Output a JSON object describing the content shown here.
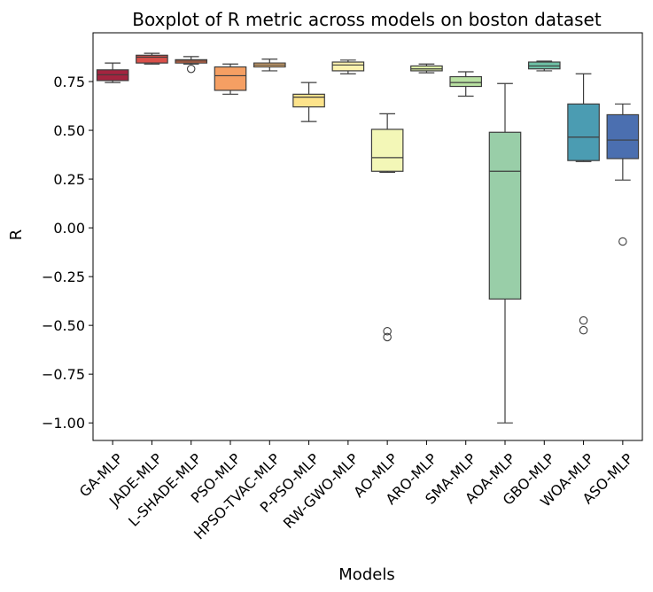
{
  "chart_data": {
    "type": "box",
    "title": "Boxplot of R metric across models on boston dataset",
    "xlabel": "Models",
    "ylabel": "R",
    "ylim": [
      -1.09,
      1.0
    ],
    "yticks": [
      -1.0,
      -0.75,
      -0.5,
      -0.25,
      0.0,
      0.25,
      0.5,
      0.75
    ],
    "ytick_labels": [
      "−1.00",
      "−0.75",
      "−0.50",
      "−0.25",
      "0.00",
      "0.25",
      "0.50",
      "0.75"
    ],
    "grid": false,
    "legend": "none",
    "categories": [
      "GA-MLP",
      "JADE-MLP",
      "L-SHADE-MLP",
      "PSO-MLP",
      "HPSO-TVAC-MLP",
      "P-PSO-MLP",
      "RW-GWO-MLP",
      "AO-MLP",
      "ARO-MLP",
      "SMA-MLP",
      "AOA-MLP",
      "GBO-MLP",
      "WOA-MLP",
      "ASO-MLP"
    ],
    "boxes": [
      {
        "whislo": 0.745,
        "q1": 0.755,
        "med": 0.785,
        "q3": 0.81,
        "whishi": 0.845,
        "fliers": [],
        "color": "#a3243f"
      },
      {
        "whislo": 0.84,
        "q1": 0.845,
        "med": 0.875,
        "q3": 0.885,
        "whishi": 0.895,
        "fliers": [],
        "color": "#d9504a"
      },
      {
        "whislo": 0.84,
        "q1": 0.845,
        "med": 0.855,
        "q3": 0.862,
        "whishi": 0.878,
        "fliers": [
          0.815
        ],
        "color": "#ef7147"
      },
      {
        "whislo": 0.685,
        "q1": 0.705,
        "med": 0.78,
        "q3": 0.825,
        "whishi": 0.84,
        "fliers": [],
        "color": "#f59f63"
      },
      {
        "whislo": 0.805,
        "q1": 0.825,
        "med": 0.835,
        "q3": 0.845,
        "whishi": 0.865,
        "fliers": [],
        "color": "#fbc07a"
      },
      {
        "whislo": 0.545,
        "q1": 0.62,
        "med": 0.67,
        "q3": 0.685,
        "whishi": 0.745,
        "fliers": [],
        "color": "#fde38b"
      },
      {
        "whislo": 0.79,
        "q1": 0.805,
        "med": 0.835,
        "q3": 0.85,
        "whishi": 0.86,
        "fliers": [],
        "color": "#fdf3ae"
      },
      {
        "whislo": 0.285,
        "q1": 0.29,
        "med": 0.36,
        "q3": 0.505,
        "whishi": 0.585,
        "fliers": [
          -0.53,
          -0.56
        ],
        "color": "#f3f7b7"
      },
      {
        "whislo": 0.795,
        "q1": 0.805,
        "med": 0.815,
        "q3": 0.83,
        "whishi": 0.84,
        "fliers": [],
        "color": "#ddf0a8"
      },
      {
        "whislo": 0.675,
        "q1": 0.725,
        "med": 0.745,
        "q3": 0.775,
        "whishi": 0.8,
        "fliers": [],
        "color": "#b9e1a2"
      },
      {
        "whislo": -1.0,
        "q1": -0.365,
        "med": 0.29,
        "q3": 0.49,
        "whishi": 0.74,
        "fliers": [],
        "color": "#99cea8"
      },
      {
        "whislo": 0.805,
        "q1": 0.815,
        "med": 0.83,
        "q3": 0.85,
        "whishi": 0.855,
        "fliers": [],
        "color": "#6dbfa4"
      },
      {
        "whislo": 0.34,
        "q1": 0.345,
        "med": 0.465,
        "q3": 0.635,
        "whishi": 0.79,
        "fliers": [
          -0.475,
          -0.525
        ],
        "color": "#4b9cb2"
      },
      {
        "whislo": 0.245,
        "q1": 0.355,
        "med": 0.45,
        "q3": 0.58,
        "whishi": 0.635,
        "fliers": [
          -0.07
        ],
        "color": "#4b6fb0"
      }
    ]
  }
}
